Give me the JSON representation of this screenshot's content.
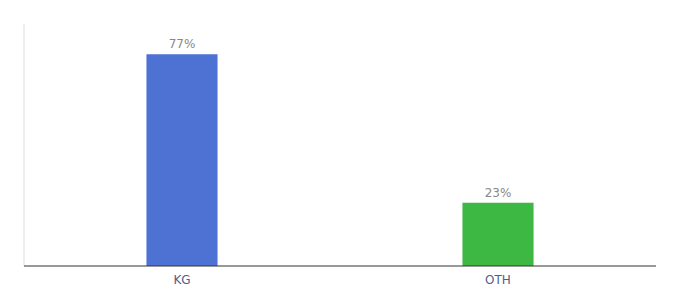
{
  "chart_data": {
    "type": "bar",
    "categories": [
      "KG",
      "OTH"
    ],
    "values": [
      77,
      23
    ],
    "value_labels": [
      "77%",
      "23%"
    ],
    "colors": [
      "#4d72d4",
      "#3cb843"
    ],
    "ylim": [
      0,
      88
    ],
    "grid": false,
    "data_labels": true,
    "tick_labels": "x"
  }
}
